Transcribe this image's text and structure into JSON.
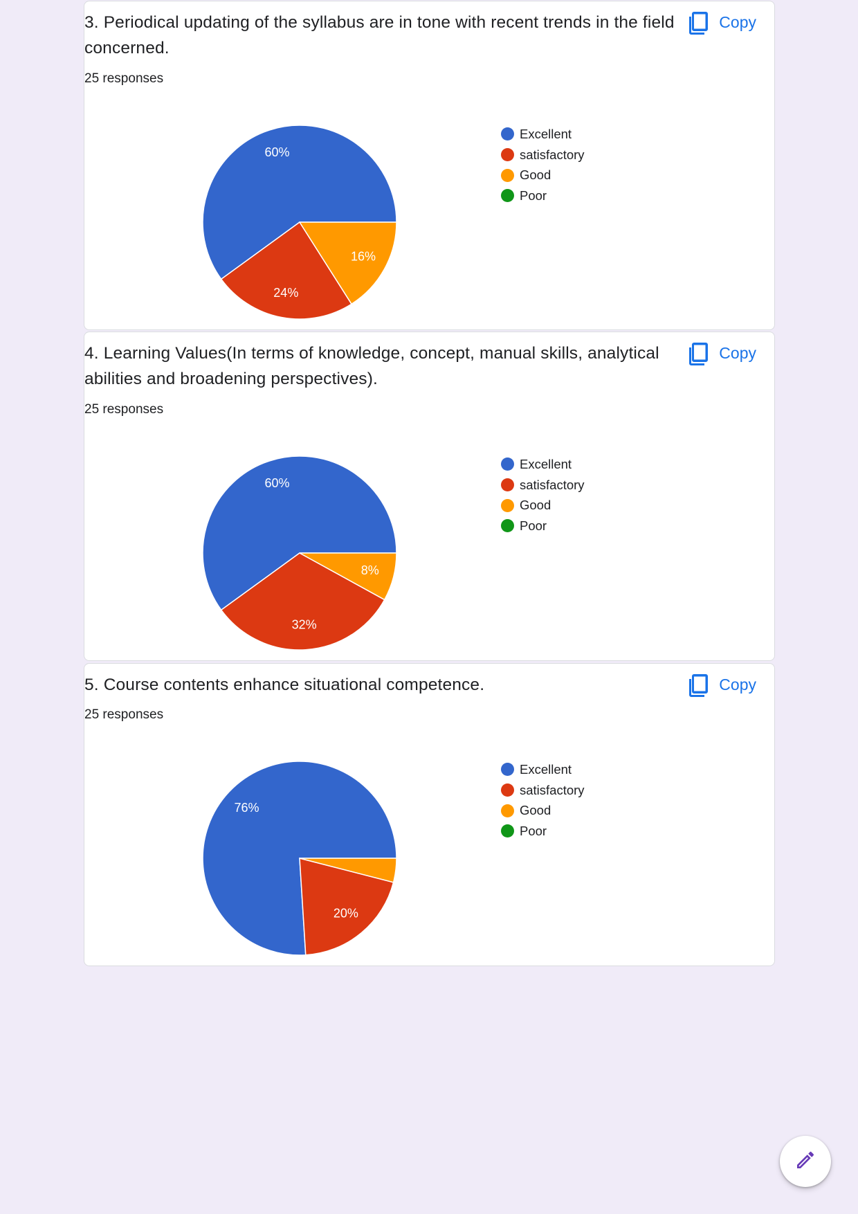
{
  "colors": {
    "page_bg": "#f0ebf8",
    "excellent": "#3366cc",
    "satisfactory": "#dc3912",
    "good": "#ff9900",
    "poor": "#109618",
    "link": "#1a73e8",
    "fab_icon": "#673ab7"
  },
  "legend_labels": [
    "Excellent",
    "satisfactory",
    "Good",
    "Poor"
  ],
  "questions": [
    {
      "title": "3. Periodical updating of the syllabus are in tone with recent trends in the field concerned.",
      "responses": "25 responses",
      "copy_label": "Copy"
    },
    {
      "title": "4. Learning Values(In terms of knowledge, concept, manual skills, analytical abilities and broadening perspectives).",
      "responses": "25 responses",
      "copy_label": "Copy"
    },
    {
      "title": "5. Course contents enhance situational competence.",
      "responses": "25 responses",
      "copy_label": "Copy"
    }
  ],
  "fab": {
    "icon": "pencil-edit-icon"
  },
  "chart_data": [
    {
      "type": "pie",
      "categories": [
        "Excellent",
        "satisfactory",
        "Good",
        "Poor"
      ],
      "values": [
        60,
        24,
        16,
        0
      ],
      "value_labels": [
        "60%",
        "24%",
        "16%",
        ""
      ],
      "legend_position": "right"
    },
    {
      "type": "pie",
      "categories": [
        "Excellent",
        "satisfactory",
        "Good",
        "Poor"
      ],
      "values": [
        60,
        32,
        8,
        0
      ],
      "value_labels": [
        "60%",
        "32%",
        "8%",
        ""
      ],
      "legend_position": "right"
    },
    {
      "type": "pie",
      "categories": [
        "Excellent",
        "satisfactory",
        "Good",
        "Poor"
      ],
      "values": [
        76,
        20,
        4,
        0
      ],
      "value_labels": [
        "76%",
        "20%",
        "",
        ""
      ],
      "legend_position": "right"
    }
  ]
}
